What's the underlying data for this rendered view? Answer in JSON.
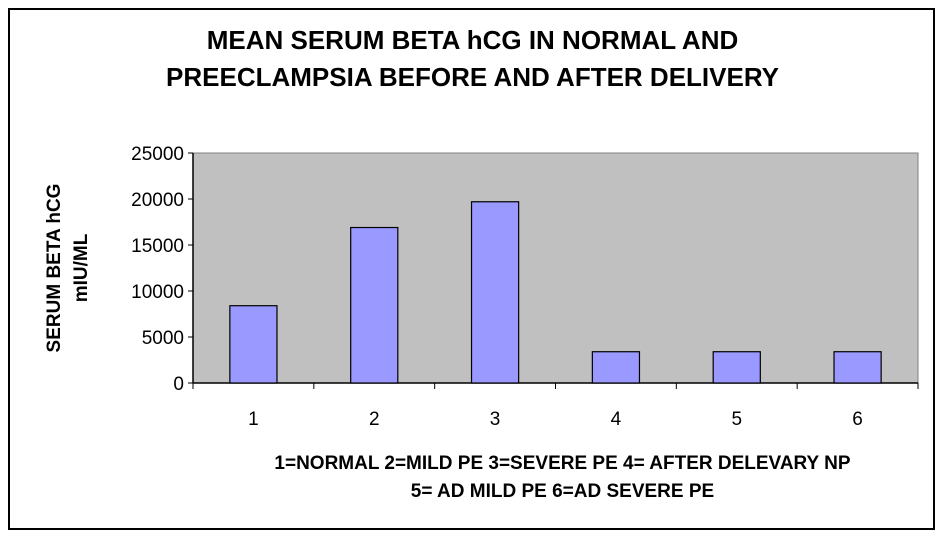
{
  "chart_data": {
    "type": "bar",
    "title_lines": [
      "MEAN SERUM BETA hCG IN NORMAL AND",
      "PREECLAMPSIA BEFORE AND AFTER DELIVERY"
    ],
    "ylabel_lines": [
      "SERUM BETA hCG",
      "mIU/ML"
    ],
    "xlabel_lines": [
      "1=NORMAL 2=MILD PE 3=SEVERE PE 4= AFTER DELEVARY NP",
      "5= AD MILD PE 6=AD SEVERE PE"
    ],
    "categories": [
      "1",
      "2",
      "3",
      "4",
      "5",
      "6"
    ],
    "values": [
      8400,
      16900,
      19700,
      3400,
      3400,
      3400
    ],
    "ylim": [
      0,
      25000
    ],
    "yticks": [
      "0",
      "5000",
      "10000",
      "15000",
      "20000",
      "25000"
    ],
    "grid": false,
    "colors": {
      "bar": "#9999ff",
      "plot_bg": "#c0c0c0",
      "bar_stroke": "#000000"
    }
  }
}
